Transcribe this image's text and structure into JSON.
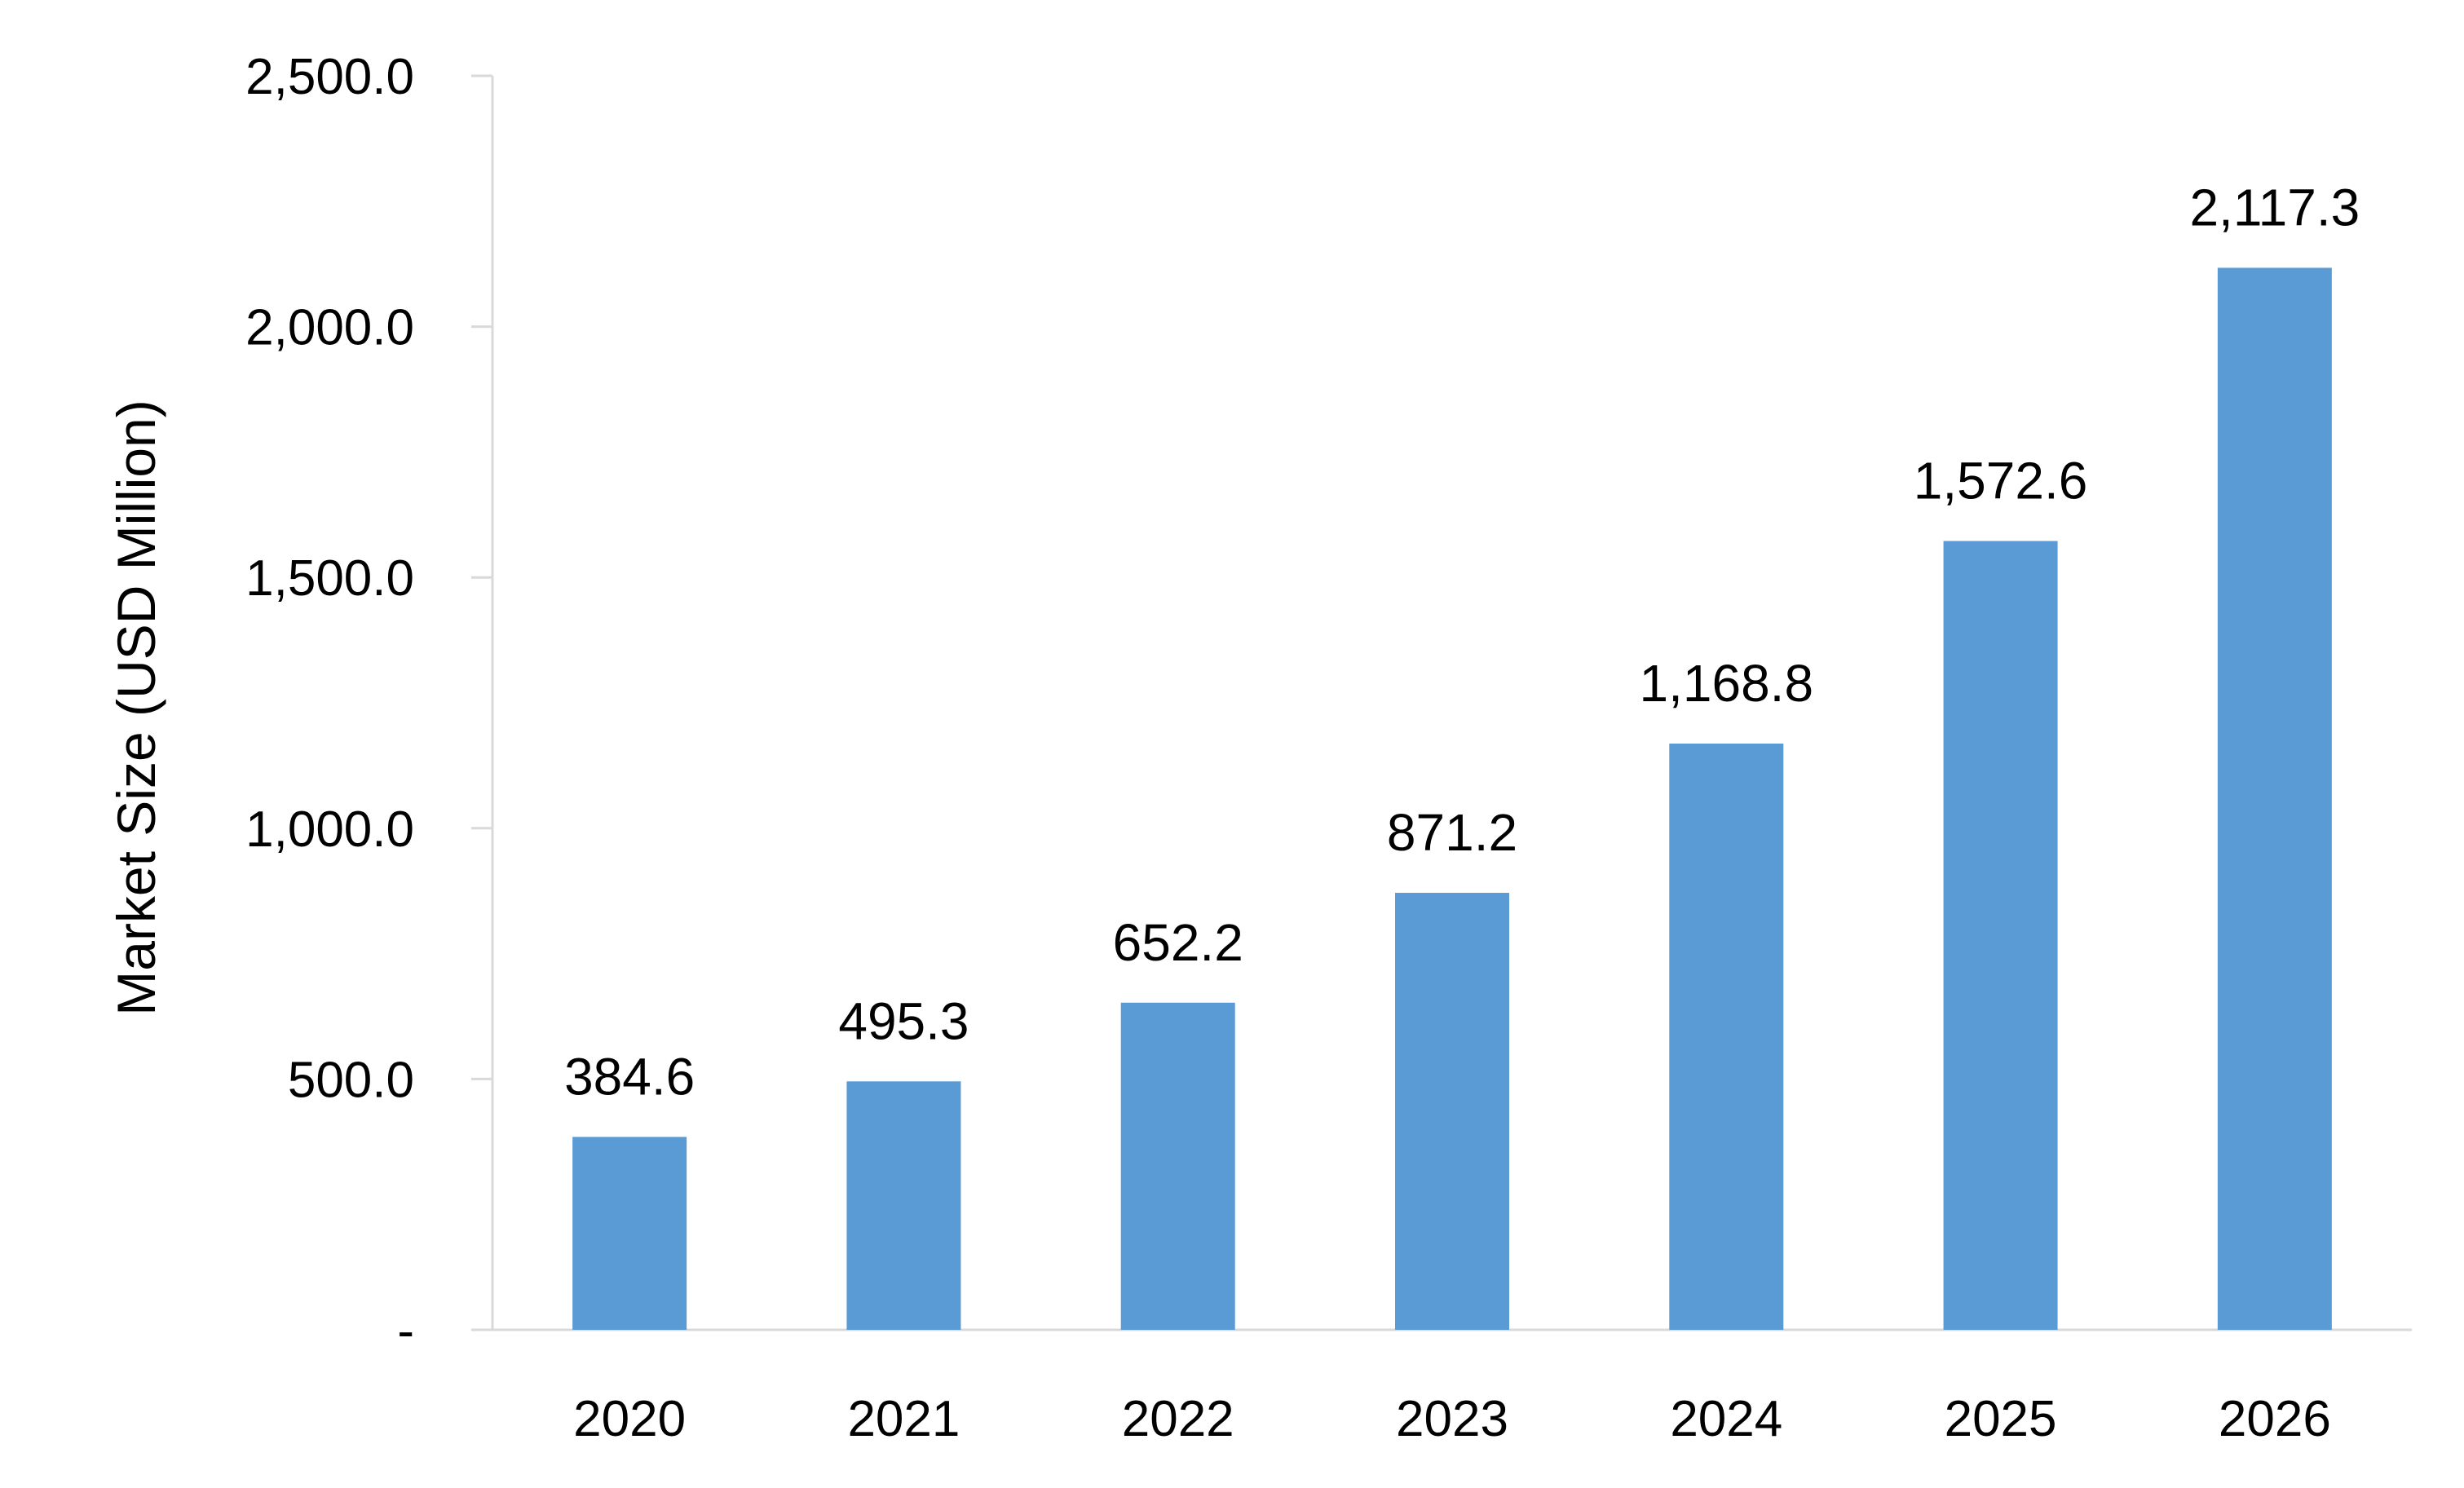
{
  "chart_data": {
    "type": "bar",
    "title": "",
    "xlabel": "",
    "ylabel": "Market Size (USD Million)",
    "categories": [
      "2020",
      "2021",
      "2022",
      "2023",
      "2024",
      "2025",
      "2026"
    ],
    "values": [
      384.6,
      495.3,
      652.2,
      871.2,
      1168.8,
      1572.6,
      2117.3
    ],
    "data_labels": [
      "384.6",
      "495.3",
      "652.2",
      "871.2",
      "1,168.8",
      "1,572.6",
      "2,117.3"
    ],
    "ylim": [
      0,
      2500
    ],
    "yticks": [
      0,
      500,
      1000,
      1500,
      2000,
      2500
    ],
    "ytick_labels": [
      "-",
      "500.0",
      "1,000.0",
      "1,500.0",
      "2,000.0",
      "2,500.0"
    ],
    "grid": false,
    "legend": "none",
    "bar_color": "#5B9BD5",
    "axis_color": "#D9D9D9"
  }
}
